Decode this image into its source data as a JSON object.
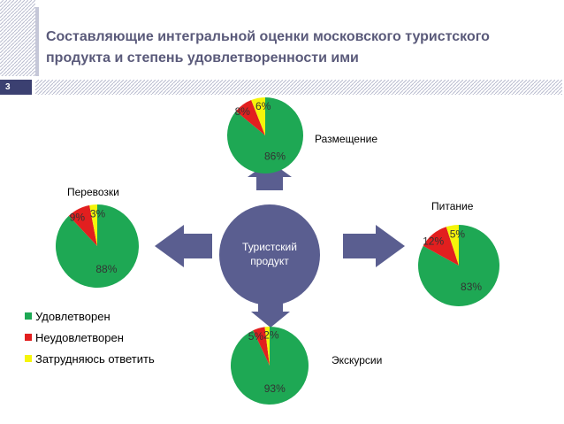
{
  "slide": {
    "title": "Составляющие интегральной оценки московского туристского продукта и степень удовлетворенности ими",
    "number": "3",
    "center_label_line1": "Туристский",
    "center_label_line2": "продукт"
  },
  "colors": {
    "satisfied": "#1ea854",
    "unsatisfied": "#e21f1f",
    "undecided": "#f5f50a",
    "center": "#5a5e90",
    "arrow": "#5a5e90"
  },
  "legend": [
    {
      "label": "Удовлетворен",
      "color": "#1ea854"
    },
    {
      "label": "Неудовлетворен",
      "color": "#e21f1f"
    },
    {
      "label": "Затрудняюсь ответить",
      "color": "#f5f50a"
    }
  ],
  "chart_data": [
    {
      "type": "pie",
      "title": "Размещение",
      "labels": [
        "Удовлетворен",
        "Неудовлетворен",
        "Затрудняюсь ответить"
      ],
      "values": [
        86,
        8,
        6
      ],
      "value_labels": [
        "86%",
        "8%",
        "6%"
      ]
    },
    {
      "type": "pie",
      "title": "Перевозки",
      "labels": [
        "Удовлетворен",
        "Неудовлетворен",
        "Затрудняюсь ответить"
      ],
      "values": [
        88,
        9,
        3
      ],
      "value_labels": [
        "88%",
        "9%",
        "3%"
      ]
    },
    {
      "type": "pie",
      "title": "Питание",
      "labels": [
        "Удовлетворен",
        "Неудовлетворен",
        "Затрудняюсь ответить"
      ],
      "values": [
        83,
        12,
        5
      ],
      "value_labels": [
        "83%",
        "12%",
        "5%"
      ]
    },
    {
      "type": "pie",
      "title": "Экскурсии",
      "labels": [
        "Удовлетворен",
        "Неудовлетворен",
        "Затрудняюсь ответить"
      ],
      "values": [
        93,
        5,
        2
      ],
      "value_labels": [
        "93%",
        "5%",
        "2%"
      ]
    }
  ]
}
